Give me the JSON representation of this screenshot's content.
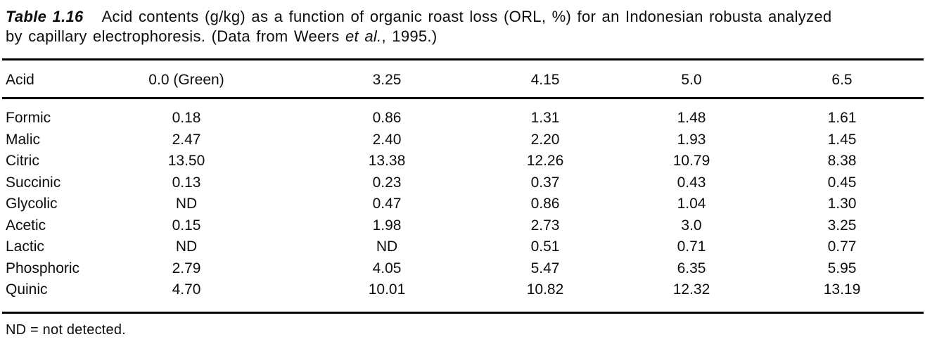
{
  "caption": {
    "label": "Table 1.16",
    "line1": "Acid contents (g/kg) as a function of organic roast loss (ORL, %) for an Indonesian robusta analyzed",
    "line2_before": "by capillary electrophoresis. (Data from Weers ",
    "line2_italic": "et al.",
    "line2_after": ", 1995.)"
  },
  "table": {
    "header": {
      "acid": "Acid",
      "orl_values": [
        "0.0 (Green)",
        "3.25",
        "4.15",
        "5.0",
        "6.5"
      ]
    },
    "rows": [
      {
        "acid": "Formic",
        "values": [
          "0.18",
          "0.86",
          "1.31",
          "1.48",
          "1.61"
        ]
      },
      {
        "acid": "Malic",
        "values": [
          "2.47",
          "2.40",
          "2.20",
          "1.93",
          "1.45"
        ]
      },
      {
        "acid": "Citric",
        "values": [
          "13.50",
          "13.38",
          "12.26",
          "10.79",
          "8.38"
        ]
      },
      {
        "acid": "Succinic",
        "values": [
          "0.13",
          "0.23",
          "0.37",
          "0.43",
          "0.45"
        ]
      },
      {
        "acid": "Glycolic",
        "values": [
          "ND",
          "0.47",
          "0.86",
          "1.04",
          "1.30"
        ]
      },
      {
        "acid": "Acetic",
        "values": [
          "0.15",
          "1.98",
          "2.73",
          "3.0",
          "3.25"
        ]
      },
      {
        "acid": "Lactic",
        "values": [
          "ND",
          "ND",
          "0.51",
          "0.71",
          "0.77"
        ]
      },
      {
        "acid": "Phosphoric",
        "values": [
          "2.79",
          "4.05",
          "5.47",
          "6.35",
          "5.95"
        ]
      },
      {
        "acid": "Quinic",
        "values": [
          "4.70",
          "10.01",
          "10.82",
          "12.32",
          "13.19"
        ]
      }
    ]
  },
  "footnote": "ND = not detected.",
  "colors": {
    "text": "#0d0d0d",
    "background": "#ffffff",
    "rule": "#000000"
  }
}
